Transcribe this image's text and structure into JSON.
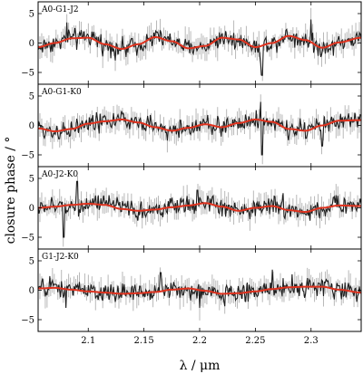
{
  "chart_data": {
    "type": "line",
    "ylabel": "closure phase / °",
    "xlabel": "λ / μm",
    "xlim": [
      2.055,
      2.345
    ],
    "ylim": [
      -7,
      7
    ],
    "xticks": [
      2.1,
      2.15,
      2.2,
      2.25,
      2.3
    ],
    "xtick_labels": [
      "2.1",
      "2.15",
      "2.2",
      "2.25",
      "2.3"
    ],
    "yticks": [
      -5,
      0,
      5
    ],
    "ytick_labels": [
      "−5",
      "0",
      "5"
    ],
    "grid": false,
    "colors": {
      "data": "#1e1e1e",
      "error": "#b8b8b8",
      "model": "#e0321e"
    },
    "panels": [
      {
        "title": "A0-G1-J2",
        "model": {
          "x": [
            2.055,
            2.07,
            2.085,
            2.1,
            2.115,
            2.13,
            2.145,
            2.16,
            2.175,
            2.19,
            2.205,
            2.22,
            2.235,
            2.25,
            2.265,
            2.28,
            2.295,
            2.31,
            2.325,
            2.345
          ],
          "y": [
            -0.7,
            0.0,
            0.8,
            0.9,
            -0.2,
            -1.0,
            -0.2,
            1.0,
            0.3,
            -0.9,
            -0.5,
            0.9,
            0.6,
            -0.7,
            0.0,
            1.2,
            0.5,
            -0.8,
            0.1,
            0.9
          ]
        },
        "spikes": [
          {
            "x": 2.081,
            "y": 3.5
          },
          {
            "x": 2.255,
            "y": -3.5
          },
          {
            "x": 2.256,
            "y": -5.5
          },
          {
            "x": 2.3,
            "y": 4.0
          }
        ]
      },
      {
        "title": "A0-G1-K0",
        "model": {
          "x": [
            2.055,
            2.07,
            2.085,
            2.1,
            2.115,
            2.13,
            2.145,
            2.16,
            2.175,
            2.19,
            2.205,
            2.22,
            2.235,
            2.25,
            2.265,
            2.28,
            2.295,
            2.31,
            2.325,
            2.345
          ],
          "y": [
            -0.5,
            -1.0,
            -0.6,
            0.3,
            0.7,
            1.0,
            0.5,
            -0.3,
            -0.9,
            -0.4,
            0.2,
            -0.3,
            0.4,
            1.0,
            0.6,
            -0.6,
            -0.9,
            0.0,
            0.8,
            0.9
          ]
        },
        "spikes": [
          {
            "x": 2.255,
            "y": 4.0
          },
          {
            "x": 2.256,
            "y": -5.0
          },
          {
            "x": 2.28,
            "y": -2.5
          },
          {
            "x": 2.31,
            "y": -3.5
          }
        ]
      },
      {
        "title": "A0-J2-K0",
        "model": {
          "x": [
            2.055,
            2.07,
            2.085,
            2.1,
            2.115,
            2.13,
            2.145,
            2.16,
            2.175,
            2.19,
            2.205,
            2.22,
            2.235,
            2.25,
            2.265,
            2.28,
            2.295,
            2.31,
            2.325,
            2.345
          ],
          "y": [
            0.0,
            0.2,
            0.5,
            0.7,
            0.5,
            -0.2,
            -0.5,
            -0.3,
            0.1,
            0.4,
            0.8,
            0.2,
            -0.5,
            0.0,
            0.3,
            -0.4,
            -0.7,
            0.0,
            0.4,
            0.3
          ]
        },
        "spikes": [
          {
            "x": 2.078,
            "y": -5.0
          },
          {
            "x": 2.09,
            "y": 4.5
          },
          {
            "x": 2.198,
            "y": 3.0
          },
          {
            "x": 2.275,
            "y": 2.5
          }
        ]
      },
      {
        "title": "G1-J2-K0",
        "model": {
          "x": [
            2.055,
            2.07,
            2.085,
            2.1,
            2.115,
            2.13,
            2.145,
            2.16,
            2.175,
            2.19,
            2.205,
            2.22,
            2.235,
            2.25,
            2.265,
            2.28,
            2.295,
            2.31,
            2.325,
            2.345
          ],
          "y": [
            0.3,
            0.4,
            0.1,
            -0.2,
            -0.4,
            -0.6,
            -0.5,
            -0.3,
            0.1,
            0.3,
            -0.1,
            -0.6,
            -0.5,
            -0.2,
            0.2,
            0.5,
            0.6,
            0.6,
            0.1,
            -0.4
          ]
        },
        "spikes": [
          {
            "x": 2.08,
            "y": -3.0
          },
          {
            "x": 2.165,
            "y": 3.0
          },
          {
            "x": 2.2,
            "y": -3.0
          },
          {
            "x": 2.265,
            "y": 3.5
          }
        ]
      }
    ]
  }
}
